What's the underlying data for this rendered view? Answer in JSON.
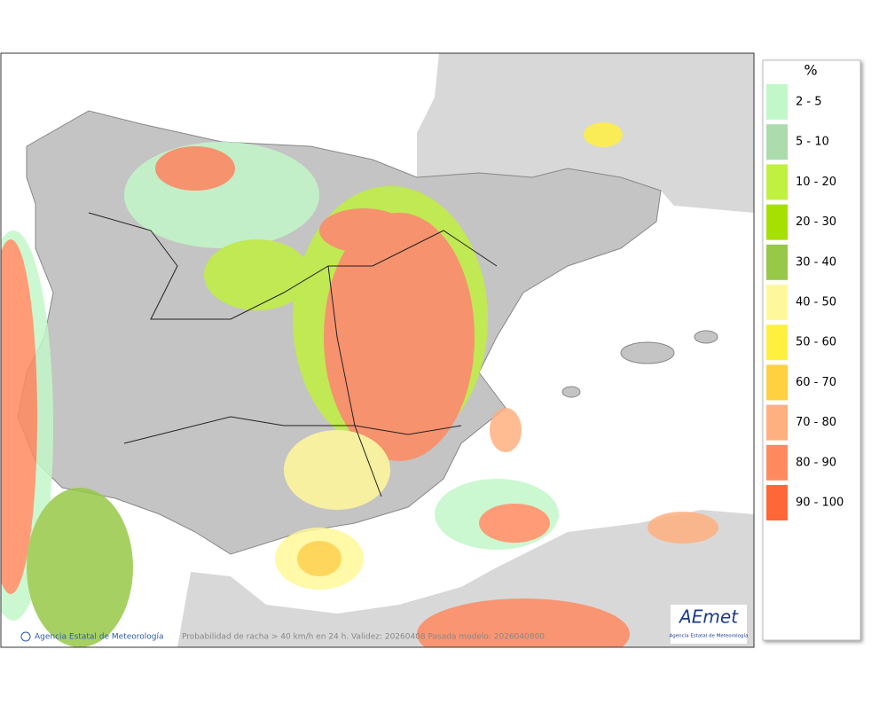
{
  "legend": {
    "title": "%",
    "items": [
      {
        "label": "2 - 5",
        "color": "#c2f7c9"
      },
      {
        "label": "5 - 10",
        "color": "#acdcae"
      },
      {
        "label": "10 - 20",
        "color": "#c0f040"
      },
      {
        "label": "20 - 30",
        "color": "#a6e000"
      },
      {
        "label": "30 - 40",
        "color": "#98c848"
      },
      {
        "label": "40 - 50",
        "color": "#fff89a"
      },
      {
        "label": "50 - 60",
        "color": "#fff040"
      },
      {
        "label": "60 - 70",
        "color": "#ffd040"
      },
      {
        "label": "70 - 80",
        "color": "#ffb080"
      },
      {
        "label": "80 - 90",
        "color": "#ff8a60"
      },
      {
        "label": "90 - 100",
        "color": "#ff6638"
      }
    ]
  },
  "footer": {
    "credit": "Agencia Estatal de Meteorología",
    "caption": "Probabilidad de racha > 40 km/h en 24 h. Validez: 20260408 Pasada modelo: 2026040800"
  },
  "logo": {
    "name": "AEmet",
    "subtitle": "Agencia Estatal de Meteorología"
  }
}
